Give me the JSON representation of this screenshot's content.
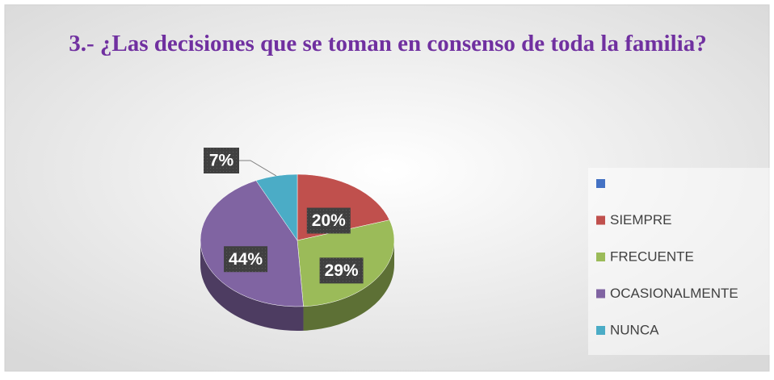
{
  "chart_data": {
    "type": "pie3d",
    "title": "3.- ¿Las decisiones que se toman en consenso de toda la familia?",
    "categories": [
      null,
      "SIEMPRE",
      "FRECUENTE",
      "OCASIONALMENTE",
      "NUNCA"
    ],
    "values": [
      0,
      20,
      29,
      44,
      7
    ],
    "value_labels": [
      null,
      "20%",
      "29%",
      "44%",
      "7%"
    ],
    "colors": [
      "#4472c4",
      "#c0504d",
      "#9bbb59",
      "#8064a2",
      "#4bacc6"
    ],
    "legend": "right"
  }
}
